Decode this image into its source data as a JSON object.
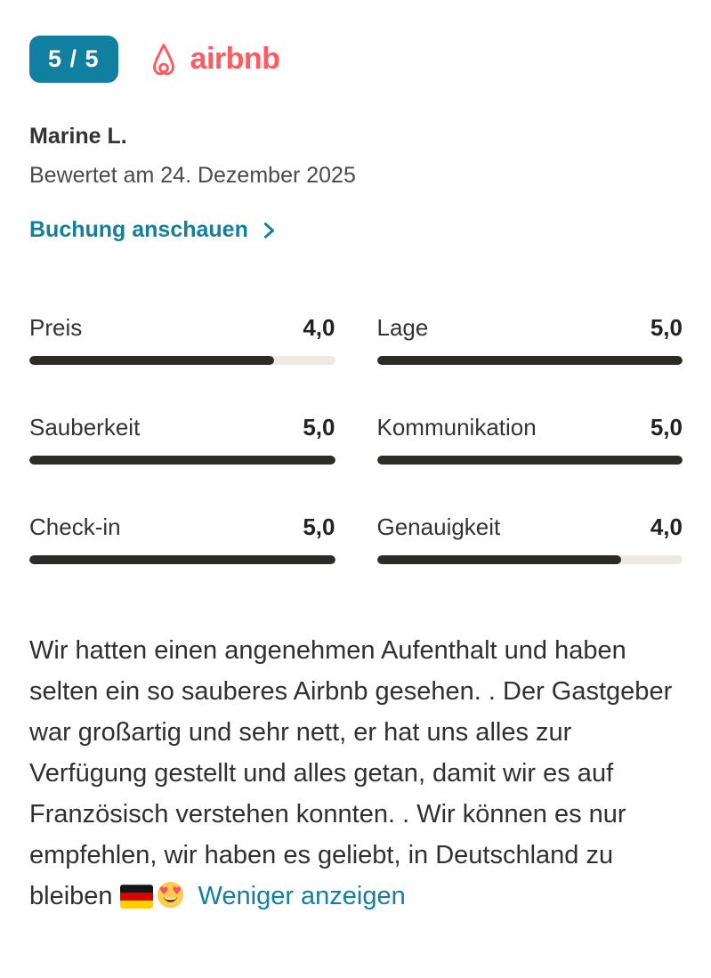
{
  "header": {
    "score_badge": "5 / 5",
    "brand": "airbnb"
  },
  "review": {
    "author": "Marine L.",
    "date_line": "Bewertet am 24. Dezember 2025",
    "booking_link": "Buchung anschauen",
    "text": "Wir hatten einen angenehmen Aufenthalt und haben selten ein so sauberes Airbnb gesehen. . Der Gastgeber war großartig und sehr nett, er hat uns alles zur Verfügung gestellt und alles getan, damit wir es auf Französisch verstehen konnten. . Wir können es nur empfehlen, wir haben es geliebt, in Deutschland zu bleiben",
    "emojis": [
      "germany-flag",
      "heart-eyes"
    ],
    "collapse_link": "Weniger anzeigen"
  },
  "ratings": [
    {
      "label": "Preis",
      "value": "4,0",
      "score": 4,
      "max": 5
    },
    {
      "label": "Lage",
      "value": "5,0",
      "score": 5,
      "max": 5
    },
    {
      "label": "Sauberkeit",
      "value": "5,0",
      "score": 5,
      "max": 5
    },
    {
      "label": "Kommunikation",
      "value": "5,0",
      "score": 5,
      "max": 5
    },
    {
      "label": "Check-in",
      "value": "5,0",
      "score": 5,
      "max": 5
    },
    {
      "label": "Genauigkeit",
      "value": "4,0",
      "score": 4,
      "max": 5
    }
  ],
  "colors": {
    "badge_teal": "#117F9F",
    "link_teal": "#117F9F",
    "brand_red": "#FF5A5F",
    "bar_fill": "#2C2B27",
    "bar_track": "#EDEAE4"
  }
}
